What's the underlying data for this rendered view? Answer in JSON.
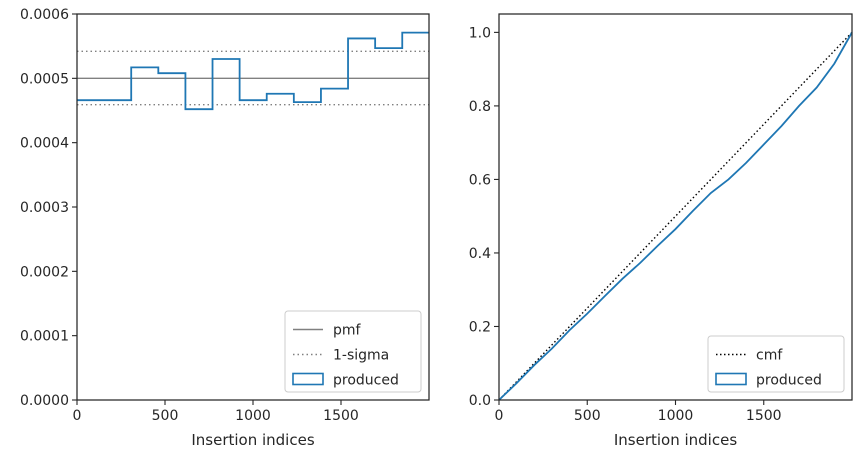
{
  "chart_data": [
    {
      "type": "histogram-step",
      "xlabel": "Insertion indices",
      "ylabel": "",
      "xlim": [
        0,
        2000
      ],
      "ylim": [
        0,
        0.0006
      ],
      "xticks": [
        0,
        500,
        1000,
        1500
      ],
      "yticks": [
        0,
        0.0001,
        0.0002,
        0.0003,
        0.0004,
        0.0005,
        0.0006
      ],
      "xtick_labels": [
        "0",
        "500",
        "1000",
        "1500"
      ],
      "ytick_labels": [
        "0.0000",
        "0.0001",
        "0.0002",
        "0.0003",
        "0.0004",
        "0.0005",
        "0.0006"
      ],
      "grid": false,
      "legend_position": "lower-right",
      "reference_lines": [
        {
          "name": "pmf",
          "y": 0.0005,
          "style": "solid",
          "color": "#808080"
        },
        {
          "name": "1-sigma",
          "y": 0.000542,
          "style": "dotted",
          "color": "#808080"
        },
        {
          "name": "1-sigma",
          "y": 0.000459,
          "style": "dotted",
          "color": "#808080"
        }
      ],
      "series": [
        {
          "name": "produced",
          "color": "#1f77b4",
          "bin_edges": [
            0,
            308,
            462,
            616,
            770,
            924,
            1078,
            1232,
            1386,
            1540,
            1694,
            1848,
            2000
          ],
          "values": [
            0.000466,
            0.000517,
            0.000508,
            0.000452,
            0.00053,
            0.000466,
            0.000476,
            0.000463,
            0.000484,
            0.000562,
            0.000547,
            0.000571
          ]
        }
      ],
      "legend": [
        "pmf",
        "1-sigma",
        "produced"
      ]
    },
    {
      "type": "line",
      "xlabel": "Insertion indices",
      "ylabel": "",
      "xlim": [
        0,
        2000
      ],
      "ylim": [
        0,
        1.05
      ],
      "xticks": [
        0,
        500,
        1000,
        1500
      ],
      "yticks": [
        0,
        0.2,
        0.4,
        0.6,
        0.8,
        1.0
      ],
      "xtick_labels": [
        "0",
        "500",
        "1000",
        "1500"
      ],
      "ytick_labels": [
        "0.0",
        "0.2",
        "0.4",
        "0.6",
        "0.8",
        "1.0"
      ],
      "grid": false,
      "legend_position": "lower-right",
      "series": [
        {
          "name": "cmf",
          "style": "dotted",
          "color": "#000000",
          "x": [
            0,
            2000
          ],
          "y": [
            0,
            1.0
          ]
        },
        {
          "name": "produced",
          "color": "#1f77b4",
          "x": [
            0,
            100,
            200,
            300,
            400,
            500,
            600,
            700,
            800,
            900,
            1000,
            1100,
            1200,
            1300,
            1400,
            1500,
            1600,
            1700,
            1800,
            1900,
            2000
          ],
          "y": [
            0,
            0.046,
            0.095,
            0.14,
            0.19,
            0.235,
            0.283,
            0.33,
            0.373,
            0.42,
            0.465,
            0.515,
            0.563,
            0.6,
            0.645,
            0.695,
            0.745,
            0.8,
            0.85,
            0.915,
            1.0
          ]
        }
      ],
      "legend": [
        "cmf",
        "produced"
      ]
    }
  ]
}
